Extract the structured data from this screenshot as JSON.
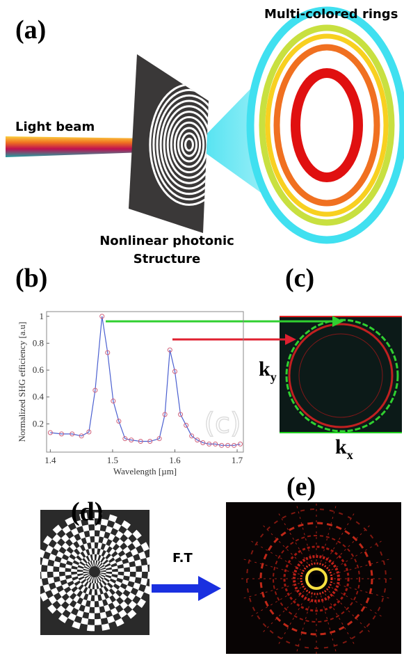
{
  "labels": {
    "a": "(a)",
    "b": "(b)",
    "c": "(c)",
    "d": "(d)",
    "e": "(e)"
  },
  "texts": {
    "light_beam": "Light beam",
    "rings": "Multi-colored rings",
    "structure_1": "Nonlinear photonic",
    "structure_2": "Structure",
    "ft": "F.T",
    "ky": {
      "base": "k",
      "sub": "y"
    },
    "kx": {
      "base": "k",
      "sub": "x"
    }
  },
  "chart_data": {
    "type": "line",
    "x_label": "Wavelength [µm]",
    "y_label": "Normalized SHG efficiency [a.u]",
    "watermark": "(c)",
    "x": [
      1.4,
      1.418,
      1.435,
      1.45,
      1.462,
      1.472,
      1.483,
      1.492,
      1.501,
      1.51,
      1.52,
      1.53,
      1.545,
      1.56,
      1.575,
      1.584,
      1.592,
      1.6,
      1.609,
      1.618,
      1.627,
      1.636,
      1.645,
      1.655,
      1.665,
      1.675,
      1.685,
      1.695,
      1.705
    ],
    "series": [
      {
        "color": "#4a5fd0",
        "marker_color": "#d0607a",
        "values": [
          0.135,
          0.125,
          0.125,
          0.11,
          0.14,
          0.45,
          1.0,
          0.73,
          0.37,
          0.22,
          0.09,
          0.08,
          0.07,
          0.07,
          0.09,
          0.27,
          0.75,
          0.59,
          0.27,
          0.19,
          0.11,
          0.08,
          0.06,
          0.05,
          0.05,
          0.04,
          0.04,
          0.04,
          0.05
        ]
      }
    ],
    "xlim": [
      1.394,
      1.71
    ],
    "ylim": [
      -0.01,
      1.035
    ],
    "xticks": [
      1.4,
      1.5,
      1.6,
      1.7
    ],
    "yticks": [
      0.2,
      0.4,
      0.6,
      0.8,
      1
    ]
  }
}
